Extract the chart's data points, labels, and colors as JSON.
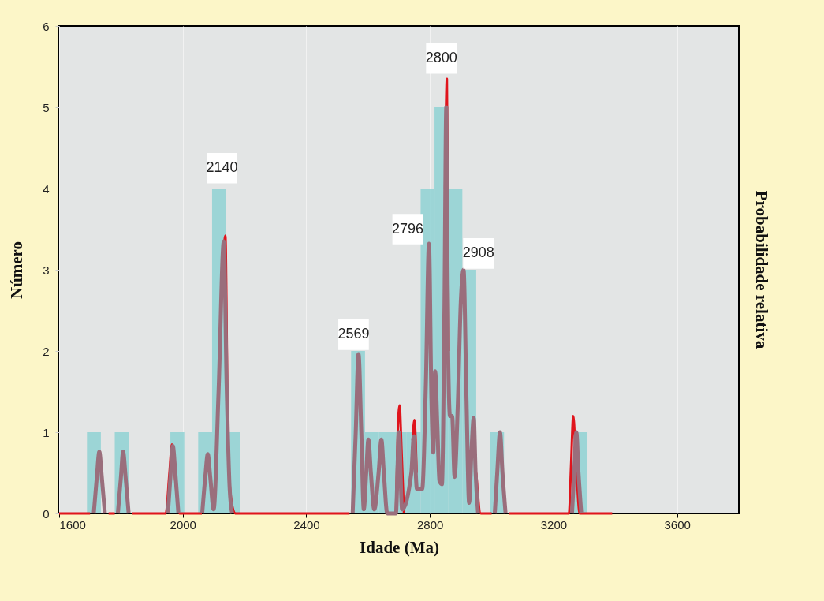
{
  "chart_data": {
    "type": "histogram",
    "xlabel": "Idade (Ma)",
    "ylabel": "Número",
    "y2label": "Probabilidade relativa",
    "bins": [
      1690,
      1735,
      1780,
      1825,
      1870,
      1915,
      1960,
      2005,
      2050,
      2095,
      2140,
      2185,
      2230,
      2275,
      2320,
      2365,
      2410,
      2455,
      2500,
      2545,
      2590,
      2635,
      2680,
      2725,
      2770,
      2815,
      2860,
      2905,
      2950,
      2995,
      3040,
      3085,
      3130,
      3175,
      3220,
      3265,
      3310
    ],
    "values": [
      1,
      0,
      1,
      0,
      0,
      0,
      1,
      0,
      1,
      4,
      1,
      0,
      0,
      0,
      0,
      0,
      0,
      0,
      0,
      2,
      1,
      1,
      1,
      1,
      4,
      5,
      4,
      3,
      0,
      1,
      0,
      0,
      0,
      0,
      0,
      1
    ],
    "color": "#8fd2d4",
    "series": [
      {
        "type": "line",
        "color": "#e0141c",
        "x": [
          1600,
          1700,
          1730,
          1760,
          1780,
          1800,
          1835,
          1945,
          1957,
          1965,
          1975,
          1990,
          2062,
          2090,
          2128,
          2138,
          2146,
          2156,
          2170,
          2540,
          2600,
          2690,
          2696,
          2702,
          2708,
          2716,
          2730,
          2744,
          2750,
          2757,
          2800,
          2849,
          2855,
          2861,
          2900,
          2950,
          2965,
          3000,
          3030,
          3055,
          3250,
          3257,
          3264,
          3272,
          3285,
          3390
        ],
        "values": [
          0,
          0,
          null,
          0,
          0,
          null,
          0,
          0,
          0.5,
          0.85,
          0.45,
          0,
          0,
          null,
          2.8,
          3.42,
          1.0,
          0.2,
          0,
          0,
          null,
          0,
          1.0,
          1.33,
          0.8,
          0,
          null,
          0.9,
          1.15,
          0.5,
          null,
          4.0,
          5.35,
          2.0,
          null,
          0.5,
          0,
          0,
          null,
          0,
          0,
          0.6,
          1.2,
          0.7,
          0,
          0
        ]
      },
      {
        "type": "line",
        "color": "#9a6e7c",
        "x": [
          1712,
          1722,
          1730,
          1738,
          1748,
          1770,
          1790,
          1800,
          1807,
          1815,
          1825,
          1900,
          1952,
          1961,
          1968,
          1976,
          1986,
          2020,
          2063,
          2073,
          2081,
          2089,
          2100,
          2116,
          2133,
          2142,
          2152,
          2160,
          2300,
          2550,
          2560,
          2569,
          2578,
          2586,
          2594,
          2601,
          2609,
          2620,
          2634,
          2643,
          2651,
          2662,
          2690,
          2700,
          2710,
          2740,
          2748,
          2758,
          2775,
          2787,
          2797,
          2805,
          2811,
          2817,
          2824,
          2831,
          2839,
          2847,
          2853,
          2859,
          2865,
          2872,
          2880,
          2890,
          2900,
          2909,
          2918,
          2927,
          2935,
          2942,
          2948,
          2956,
          2990,
          3010,
          3018,
          3027,
          3035,
          3045,
          3200,
          3260,
          3267,
          3274,
          3281,
          3290
        ],
        "values": [
          0,
          0.45,
          0.76,
          0.45,
          0,
          null,
          0,
          0.45,
          0.76,
          0.45,
          0,
          null,
          0,
          0.5,
          0.83,
          0.5,
          0,
          null,
          0,
          0.45,
          0.73,
          0.45,
          0.05,
          1.5,
          3.35,
          1.6,
          0.3,
          0,
          null,
          0,
          1.0,
          1.96,
          1.0,
          0.05,
          0.5,
          0.91,
          0.5,
          0.05,
          0.5,
          0.91,
          0.5,
          0,
          0,
          1.0,
          0.05,
          0.5,
          0.95,
          0.3,
          0.3,
          1.6,
          3.32,
          1.4,
          0.75,
          1.75,
          1.1,
          0.4,
          0.36,
          2.5,
          5.0,
          2.0,
          1.2,
          1.2,
          0.45,
          1.3,
          2.6,
          3.0,
          1.5,
          0.13,
          0.8,
          1.18,
          0.5,
          0,
          null,
          0,
          0.5,
          1.0,
          0.5,
          0,
          null,
          0,
          0.5,
          1.0,
          0.5,
          0
        ]
      }
    ],
    "annotations": [
      {
        "text": "2140",
        "x": 2127,
        "y": 4.25
      },
      {
        "text": "2569",
        "x": 2553,
        "y": 2.2
      },
      {
        "text": "2796",
        "x": 2728,
        "y": 3.5
      },
      {
        "text": "2800",
        "x": 2837,
        "y": 5.6
      },
      {
        "text": "2908",
        "x": 2957,
        "y": 3.2
      }
    ],
    "xlim": [
      1600,
      3800
    ],
    "xticks": [
      1600,
      2000,
      2400,
      2800,
      3200,
      3600
    ],
    "ylim": [
      0,
      6
    ],
    "yticks": [
      0,
      1,
      2,
      3,
      4,
      5,
      6
    ],
    "grid": "x"
  }
}
